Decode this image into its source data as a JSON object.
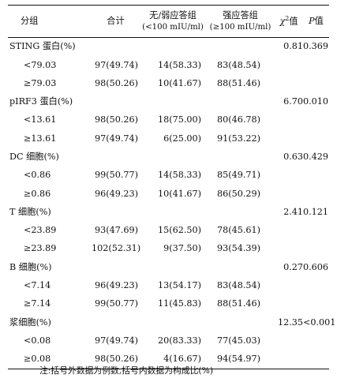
{
  "header": {
    "group": "分组",
    "total": "合计",
    "weak_line1": "无/弱应答组",
    "weak_line2": "(<100 mIU/ml)",
    "strong_line1": "强应答组",
    "strong_line2": "(≥100 mIU/ml)",
    "chi_symbol": "χ",
    "chi_sup": "2",
    "chi_suffix": "值",
    "p_symbol": "P",
    "p_suffix": "值"
  },
  "groups": [
    {
      "name": "STING 蛋白(%)",
      "chi2": "0.81",
      "p": "0.369",
      "rows": [
        {
          "level": "<79.03",
          "total": "97(49.74)",
          "weak": "14(58.33)",
          "strong": "83(48.54)"
        },
        {
          "level": "≥79.03",
          "total": "98(50.26)",
          "weak": "10(41.67)",
          "strong": "88(51.46)"
        }
      ]
    },
    {
      "name": "pIRF3 蛋白(%)",
      "chi2": "6.70",
      "p": "0.010",
      "rows": [
        {
          "level": "<13.61",
          "total": "98(50.26)",
          "weak": "18(75.00)",
          "strong": "80(46.78)"
        },
        {
          "level": "≥13.61",
          "total": "97(49.74)",
          "weak": "6(25.00)",
          "strong": "91(53.22)"
        }
      ]
    },
    {
      "name": "DC 细胞(%)",
      "chi2": "0.63",
      "p": "0.429",
      "rows": [
        {
          "level": "<0.86",
          "total": "99(50.77)",
          "weak": "14(58.33)",
          "strong": "85(49.71)"
        },
        {
          "level": "≥0.86",
          "total": "96(49.23)",
          "weak": "10(41.67)",
          "strong": "86(50.29)"
        }
      ]
    },
    {
      "name": "T 细胞(%)",
      "chi2": "2.41",
      "p": "0.121",
      "rows": [
        {
          "level": "<23.89",
          "total": "93(47.69)",
          "weak": "15(62.50)",
          "strong": "78(45.61)"
        },
        {
          "level": "≥23.89",
          "total": "102(52.31)",
          "weak": "9(37.50)",
          "strong": "93(54.39)"
        }
      ]
    },
    {
      "name": "B 细胞(%)",
      "chi2": "0.27",
      "p": "0.606",
      "rows": [
        {
          "level": "<7.14",
          "total": "96(49.23)",
          "weak": "13(54.17)",
          "strong": "83(48.54)"
        },
        {
          "level": "≥7.14",
          "total": "99(50.77)",
          "weak": "11(45.83)",
          "strong": "88(51.46)"
        }
      ]
    },
    {
      "name": "浆细胞(%)",
      "chi2": "12.35",
      "p": "<0.001",
      "rows": [
        {
          "level": "<0.08",
          "total": "97(49.74)",
          "weak": "20(83.33)",
          "strong": "77(45.03)"
        },
        {
          "level": "≥0.08",
          "total": "98(50.26)",
          "weak": "4(16.67)",
          "strong": "94(54.97)"
        }
      ]
    }
  ],
  "note": "注:括号外数据为例数,括号内数据为构成比(%)"
}
